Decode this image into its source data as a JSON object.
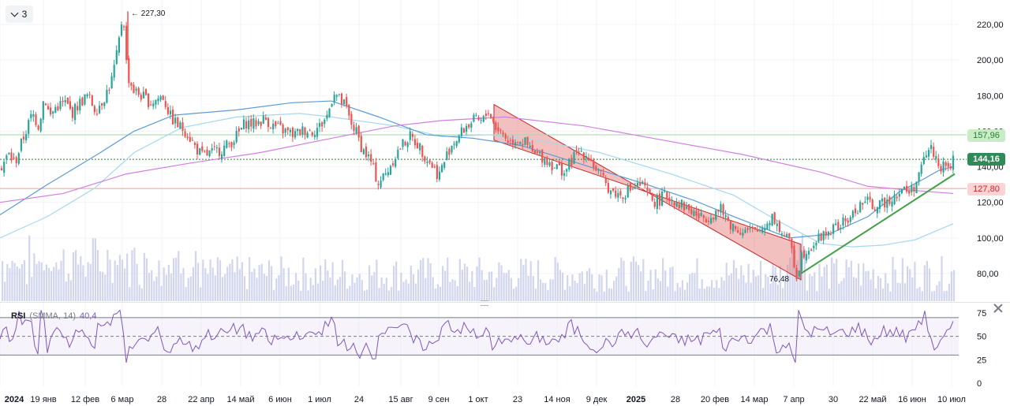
{
  "ui": {
    "collapse_count": "3",
    "rsi_name": "RSI",
    "rsi_params": "(SMMA, 14)",
    "rsi_value": "40,4",
    "tag_resistance": "157,96",
    "tag_last": "144,16",
    "tag_support": "127,80"
  },
  "colors": {
    "up": "#26a69a",
    "down": "#ef5350",
    "volume": "#c5cae9",
    "ma_fast": "#a5d8ef",
    "ma_mid": "#5b9bd5",
    "ma_slow": "#d17fe0",
    "rsi_line": "#7e57c2",
    "channel_fill": "#e57373",
    "trend_line": "#43a047"
  },
  "chart_data": {
    "type": "candlestick",
    "price_axis": {
      "ticks": [
        "220,00",
        "200,00",
        "180,00",
        "160,00",
        "140,00",
        "120,00",
        "100,00",
        "80,00"
      ],
      "range": [
        60,
        232
      ]
    },
    "time_axis": {
      "ticks": [
        "2024",
        "19 янв",
        "12 фев",
        "6 мар",
        "28",
        "22 апр",
        "14 май",
        "6 июн",
        "1 июл",
        "24",
        "15 авг",
        "9 сен",
        "1 окт",
        "23",
        "14 ноя",
        "9 дек",
        "2025",
        "28",
        "20 фев",
        "14 мар",
        "7 апр",
        "30",
        "22 май",
        "16 июн",
        "10 июл"
      ]
    },
    "annotations": {
      "high": "227,30",
      "low": "76,48"
    },
    "close_path": [
      [
        0,
        140
      ],
      [
        10,
        147
      ],
      [
        18,
        142
      ],
      [
        25,
        152
      ],
      [
        40,
        170
      ],
      [
        48,
        163
      ],
      [
        55,
        180
      ],
      [
        62,
        168
      ],
      [
        70,
        174
      ],
      [
        82,
        176
      ],
      [
        90,
        170
      ],
      [
        100,
        176
      ],
      [
        110,
        180
      ],
      [
        120,
        172
      ],
      [
        130,
        178
      ],
      [
        140,
        188
      ],
      [
        148,
        205
      ],
      [
        155,
        228
      ],
      [
        160,
        192
      ],
      [
        168,
        183
      ],
      [
        178,
        180
      ],
      [
        190,
        176
      ],
      [
        205,
        180
      ],
      [
        215,
        168
      ],
      [
        225,
        163
      ],
      [
        235,
        160
      ],
      [
        245,
        152
      ],
      [
        255,
        146
      ],
      [
        268,
        148
      ],
      [
        280,
        150
      ],
      [
        290,
        153
      ],
      [
        300,
        158
      ],
      [
        310,
        165
      ],
      [
        320,
        164
      ],
      [
        335,
        167
      ],
      [
        345,
        163
      ],
      [
        360,
        160
      ],
      [
        372,
        158
      ],
      [
        385,
        161
      ],
      [
        395,
        160
      ],
      [
        405,
        163
      ],
      [
        415,
        170
      ],
      [
        422,
        183
      ],
      [
        430,
        177
      ],
      [
        437,
        174
      ],
      [
        442,
        166
      ],
      [
        450,
        160
      ],
      [
        458,
        150
      ],
      [
        468,
        144
      ],
      [
        478,
        131
      ],
      [
        488,
        136
      ],
      [
        498,
        145
      ],
      [
        508,
        152
      ],
      [
        518,
        157
      ],
      [
        528,
        153
      ],
      [
        538,
        146
      ],
      [
        548,
        140
      ],
      [
        555,
        135
      ],
      [
        562,
        143
      ],
      [
        570,
        152
      ],
      [
        580,
        157
      ],
      [
        590,
        163
      ],
      [
        600,
        166
      ],
      [
        610,
        165
      ],
      [
        618,
        172
      ],
      [
        626,
        163
      ],
      [
        635,
        159
      ],
      [
        645,
        154
      ],
      [
        655,
        156
      ],
      [
        665,
        153
      ],
      [
        675,
        147
      ],
      [
        685,
        146
      ],
      [
        700,
        141
      ],
      [
        715,
        137
      ],
      [
        725,
        145
      ],
      [
        735,
        149
      ],
      [
        745,
        146
      ],
      [
        755,
        138
      ],
      [
        765,
        131
      ],
      [
        775,
        126
      ],
      [
        785,
        124
      ],
      [
        800,
        128
      ],
      [
        812,
        130
      ],
      [
        820,
        124
      ],
      [
        830,
        120
      ],
      [
        842,
        124
      ],
      [
        855,
        121
      ],
      [
        865,
        118
      ],
      [
        875,
        115
      ],
      [
        888,
        111
      ],
      [
        900,
        113
      ],
      [
        912,
        116
      ],
      [
        922,
        109
      ],
      [
        932,
        105
      ],
      [
        945,
        104
      ],
      [
        958,
        103
      ],
      [
        970,
        108
      ],
      [
        978,
        113
      ],
      [
        985,
        106
      ],
      [
        995,
        100
      ],
      [
        1002,
        96
      ],
      [
        1008,
        78
      ],
      [
        1015,
        91
      ],
      [
        1022,
        94
      ],
      [
        1030,
        97
      ],
      [
        1040,
        101
      ],
      [
        1050,
        104
      ],
      [
        1060,
        106
      ],
      [
        1070,
        109
      ],
      [
        1080,
        113
      ],
      [
        1088,
        118
      ],
      [
        1095,
        121
      ],
      [
        1102,
        119
      ],
      [
        1112,
        117
      ],
      [
        1122,
        121
      ],
      [
        1132,
        124
      ],
      [
        1142,
        127
      ],
      [
        1152,
        126
      ],
      [
        1160,
        131
      ],
      [
        1166,
        138
      ],
      [
        1172,
        147
      ],
      [
        1178,
        151
      ],
      [
        1184,
        146
      ],
      [
        1190,
        141
      ],
      [
        1196,
        139
      ],
      [
        1202,
        140
      ],
      [
        1208,
        144
      ]
    ],
    "series": [
      {
        "points": [
          [
            0,
            100
          ],
          [
            60,
            112
          ],
          [
            120,
            128
          ],
          [
            170,
            148
          ],
          [
            230,
            162
          ],
          [
            300,
            168
          ],
          [
            380,
            170
          ],
          [
            420,
            168
          ],
          [
            500,
            163
          ],
          [
            560,
            157
          ],
          [
            620,
            158
          ],
          [
            680,
            155
          ],
          [
            760,
            148
          ],
          [
            850,
            136
          ],
          [
            930,
            124
          ],
          [
            980,
            111
          ],
          [
            1040,
            97
          ],
          [
            1080,
            95
          ],
          [
            1120,
            96
          ],
          [
            1160,
            99
          ],
          [
            1208,
            108
          ]
        ]
      },
      {
        "points": [
          [
            0,
            113
          ],
          [
            60,
            130
          ],
          [
            120,
            146
          ],
          [
            170,
            160
          ],
          [
            220,
            169
          ],
          [
            300,
            172
          ],
          [
            370,
            176
          ],
          [
            420,
            177
          ],
          [
            480,
            168
          ],
          [
            540,
            158
          ],
          [
            600,
            156
          ],
          [
            660,
            152
          ],
          [
            740,
            141
          ],
          [
            820,
            130
          ],
          [
            880,
            121
          ],
          [
            930,
            112
          ],
          [
            1000,
            100
          ],
          [
            1050,
            102
          ],
          [
            1100,
            112
          ],
          [
            1140,
            126
          ],
          [
            1170,
            133
          ],
          [
            1190,
            138
          ],
          [
            1208,
            140
          ]
        ]
      },
      {
        "points": [
          [
            0,
            120
          ],
          [
            80,
            125
          ],
          [
            160,
            136
          ],
          [
            240,
            142
          ],
          [
            330,
            148
          ],
          [
            420,
            156
          ],
          [
            500,
            163
          ],
          [
            560,
            166
          ],
          [
            640,
            168
          ],
          [
            740,
            163
          ],
          [
            840,
            155
          ],
          [
            940,
            147
          ],
          [
            1040,
            137
          ],
          [
            1100,
            129
          ],
          [
            1150,
            127
          ],
          [
            1208,
            125
          ]
        ]
      }
    ],
    "channel": {
      "start": [
        626,
        175
      ],
      "end": [
        1015,
        76.5
      ],
      "width": 20
    },
    "trend_line": {
      "start": [
        1015,
        80
      ],
      "end": [
        1210,
        136
      ]
    },
    "levels": [
      157.96,
      144.16,
      127.8
    ],
    "rsi": {
      "upper": 70,
      "middle": 50,
      "lower": 30,
      "axis_ticks": [
        0,
        25,
        50,
        75
      ]
    }
  }
}
